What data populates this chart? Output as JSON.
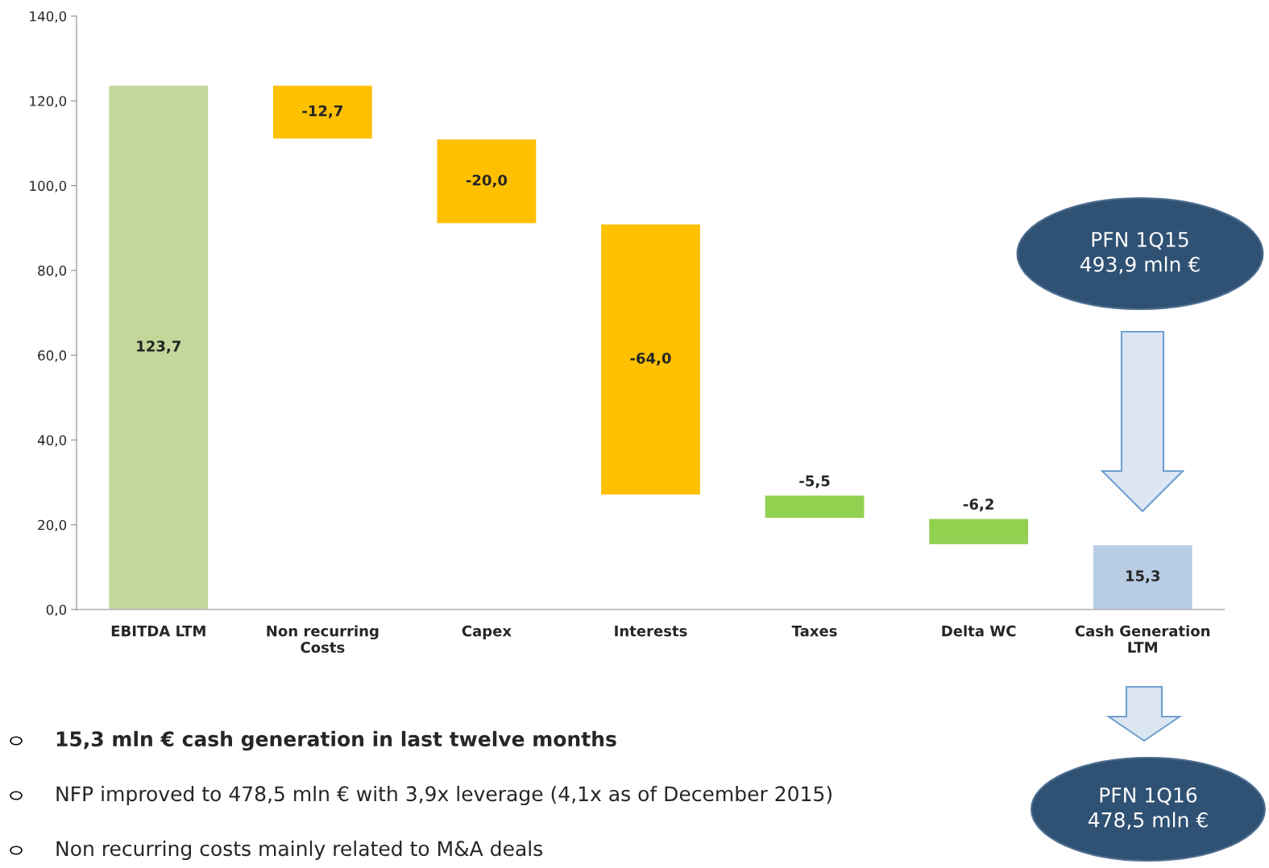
{
  "chart_data": {
    "type": "bar",
    "categories": [
      "EBITDA LTM",
      "Non recurring\nCosts",
      "Capex",
      "Interests",
      "Taxes",
      "Delta WC",
      "Cash Generation\nLTM"
    ],
    "values": [
      123.7,
      -12.7,
      -20.0,
      -64.0,
      -5.5,
      -6.2,
      15.3
    ],
    "base": [
      0,
      123.7,
      111.0,
      91.0,
      27.0,
      21.5,
      0
    ],
    "colors": [
      "#c4d79b",
      "#ffc000",
      "#ffc000",
      "#ffc000",
      "#92d050",
      "#92d050",
      "#b8cce4"
    ],
    "value_labels": [
      "123,7",
      "-12,7",
      "-20,0",
      "-64,0",
      "-5,5",
      "-6,2",
      "15,3"
    ],
    "ylim": [
      0,
      140
    ],
    "yticks": [
      {
        "value": 0,
        "label": "0,0"
      },
      {
        "value": 20,
        "label": "20,0"
      },
      {
        "value": 40,
        "label": "40,0"
      },
      {
        "value": 60,
        "label": "60,0"
      },
      {
        "value": 80,
        "label": "80,0"
      },
      {
        "value": 100,
        "label": "100,0"
      },
      {
        "value": 120,
        "label": "120,0"
      },
      {
        "value": 140,
        "label": "140,0"
      }
    ],
    "grid": false,
    "legend": false,
    "annotations": [
      "PFN 1Q15\n493,9 mln €",
      "PFN 1Q16\n478,5 mln €",
      "15,3 mln € cash generation in last twelve months",
      "NFP improved to 478,5 mln € with 3,9x leverage (4,1x as of December 2015)",
      "Non recurring costs mainly related to M&A deals"
    ]
  }
}
